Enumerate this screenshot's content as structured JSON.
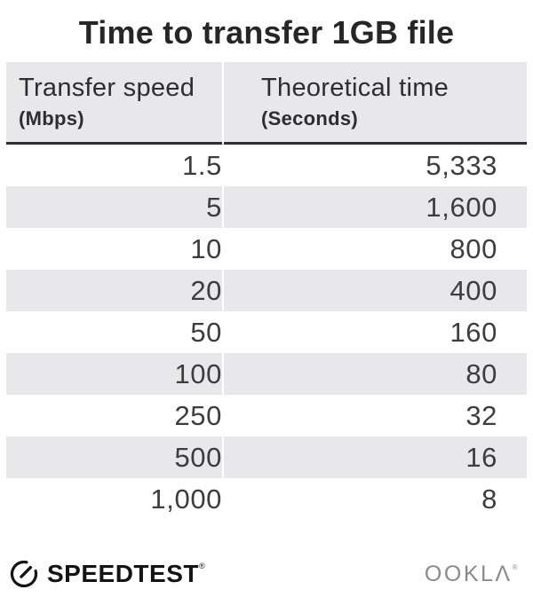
{
  "title": "Time to transfer 1GB file",
  "table": {
    "columns": [
      {
        "label": "Transfer speed",
        "unit": "(Mbps)"
      },
      {
        "label": "Theoretical time",
        "unit": "(Seconds)"
      }
    ],
    "rows": [
      [
        "1.5",
        "5,333"
      ],
      [
        "5",
        "1,600"
      ],
      [
        "10",
        "800"
      ],
      [
        "20",
        "400"
      ],
      [
        "50",
        "160"
      ],
      [
        "100",
        "80"
      ],
      [
        "250",
        "32"
      ],
      [
        "500",
        "16"
      ],
      [
        "1,000",
        "8"
      ]
    ]
  },
  "footer": {
    "speedtest_label": "SPEEDTEST",
    "speedtest_mark": "®",
    "ookla_label": "OOKLΛ",
    "ookla_mark": "®"
  },
  "icons": {
    "gauge_icon": "speedtest-gauge-icon"
  },
  "colors": {
    "stripe": "#e8e7ea",
    "header_border": "#2f2d30",
    "title_text": "#262626",
    "cell_text": "#3d3d3d",
    "speedtest_black": "#141414",
    "ookla_gray": "#8a8a8a"
  },
  "chart_data": {
    "type": "table",
    "title": "Time to transfer 1GB file",
    "columns": [
      "Transfer speed (Mbps)",
      "Theoretical time (Seconds)"
    ],
    "rows": [
      [
        1.5,
        5333
      ],
      [
        5,
        1600
      ],
      [
        10,
        800
      ],
      [
        20,
        400
      ],
      [
        50,
        160
      ],
      [
        100,
        80
      ],
      [
        250,
        32
      ],
      [
        500,
        16
      ],
      [
        1000,
        8
      ]
    ],
    "layout": {
      "striped": true,
      "stripe_start_row": 2,
      "value_alignment": "right"
    }
  }
}
